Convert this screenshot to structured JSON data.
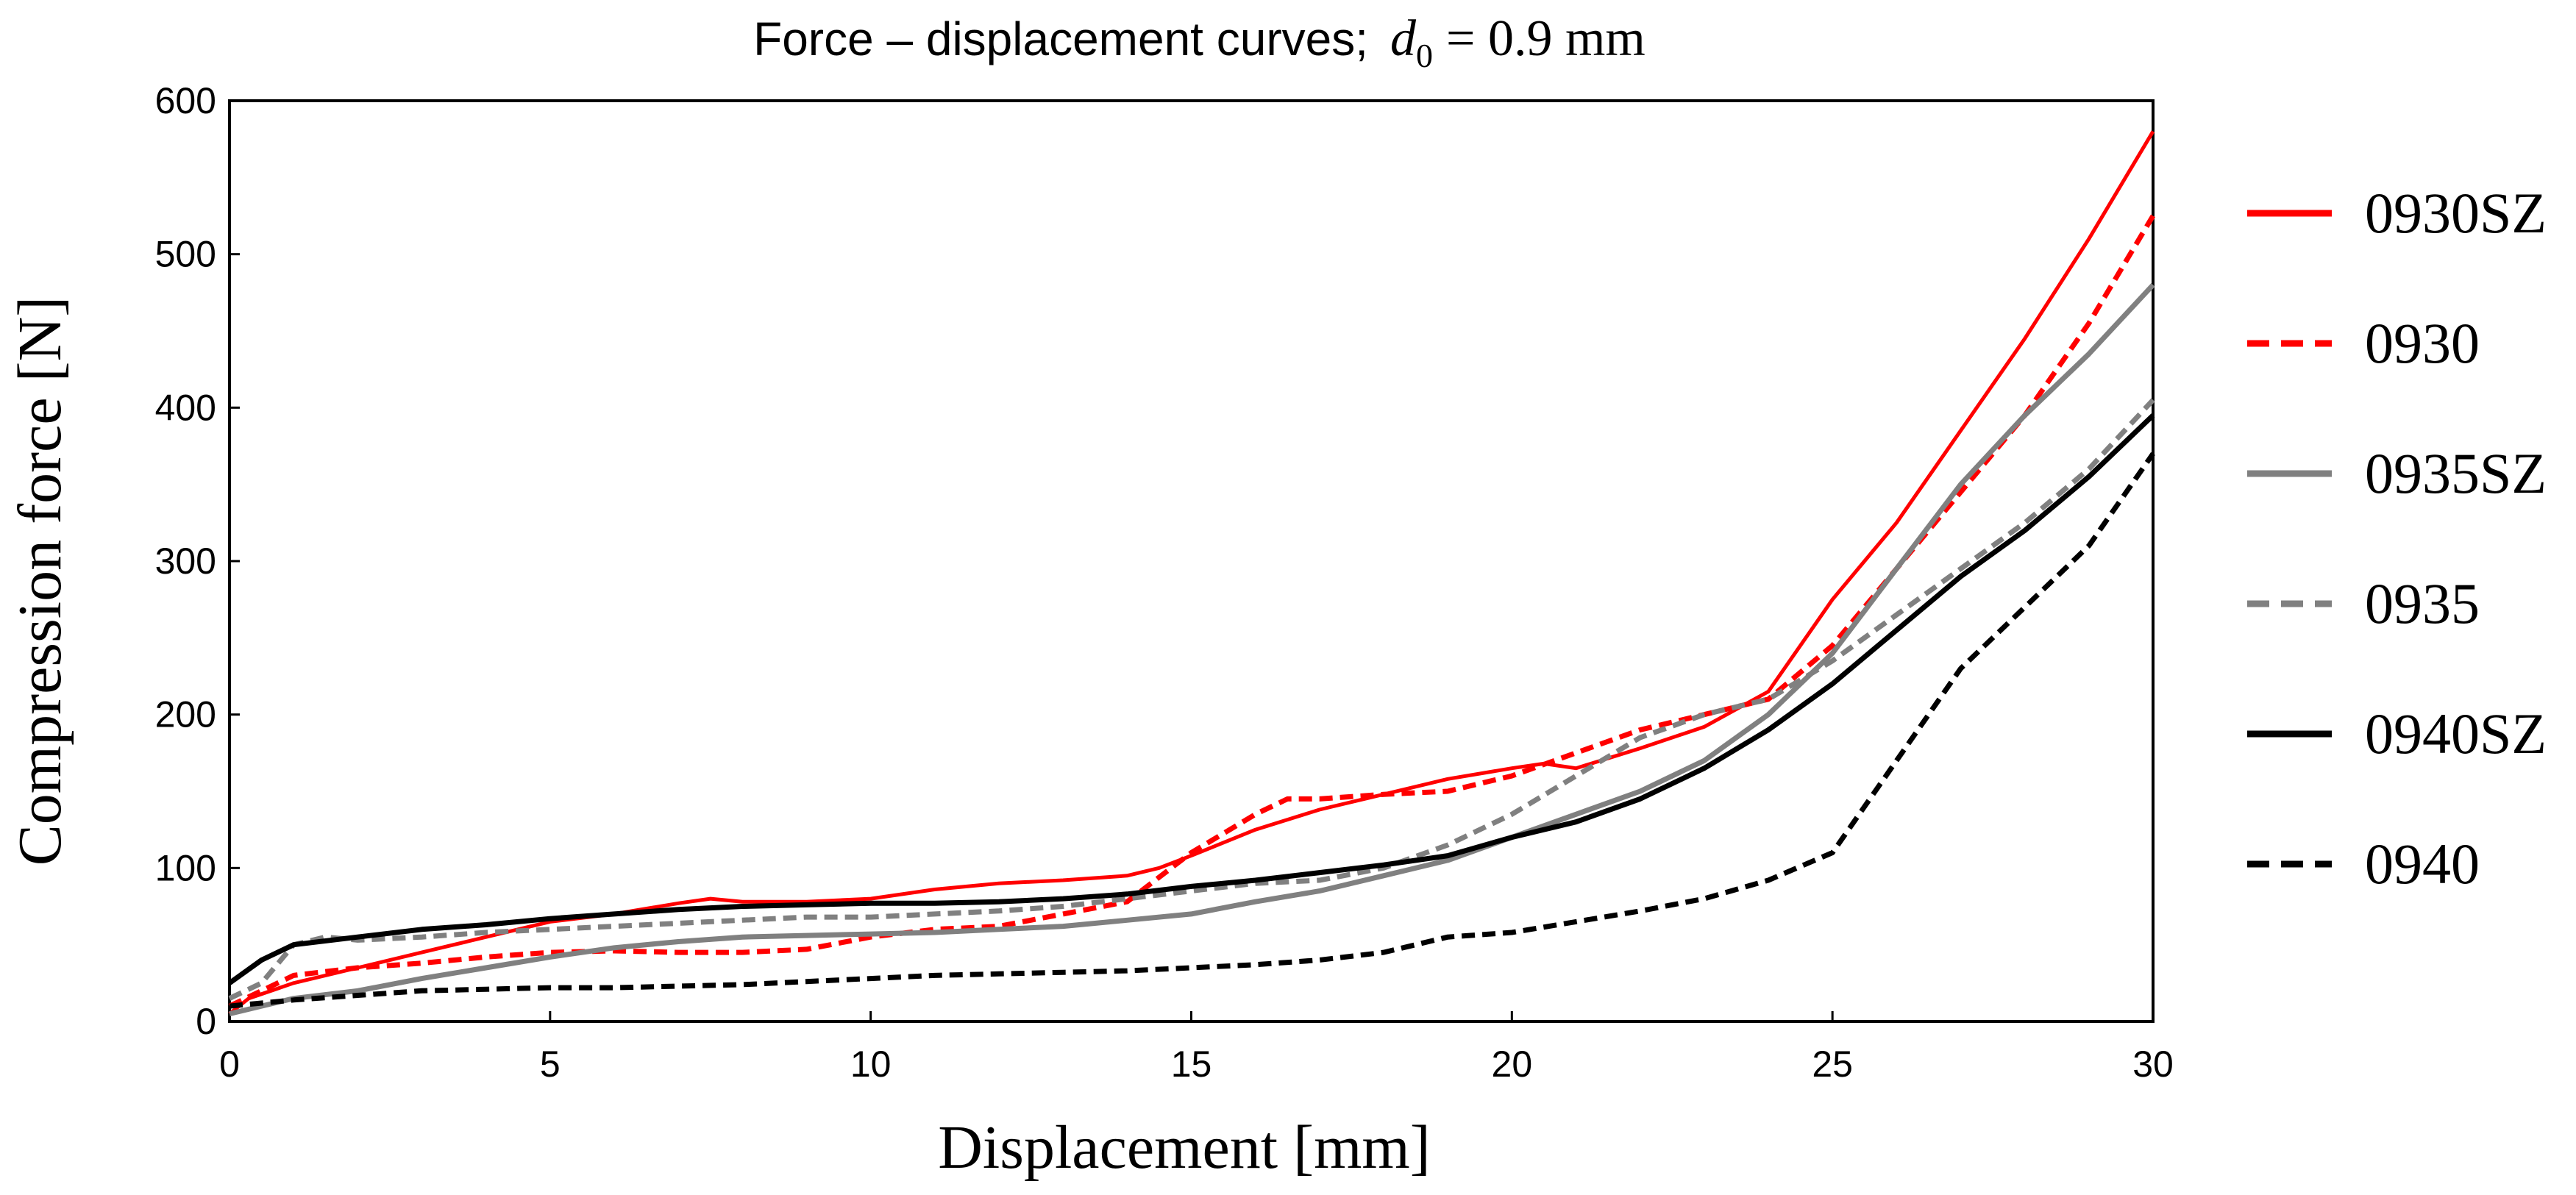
{
  "chart_data": {
    "type": "line",
    "title": "Force – displacement curves;",
    "title_math": {
      "symbol": "d",
      "subscript": "0",
      "relation": "= 0.9 mm"
    },
    "xlabel": "Displacement [mm]",
    "ylabel": "Compression force [N]",
    "xlim": [
      0,
      30
    ],
    "ylim": [
      0,
      600
    ],
    "xticks": [
      0,
      5,
      10,
      15,
      20,
      25,
      30
    ],
    "yticks": [
      0,
      100,
      200,
      300,
      400,
      500,
      600
    ],
    "grid": false,
    "legend_position": "right",
    "series": [
      {
        "name": "0930SZ",
        "color": "#ff0000",
        "dash": "solid",
        "width": 5,
        "points": [
          [
            0,
            5
          ],
          [
            0.3,
            15
          ],
          [
            1,
            25
          ],
          [
            2,
            35
          ],
          [
            3,
            45
          ],
          [
            4,
            55
          ],
          [
            5,
            65
          ],
          [
            6,
            70
          ],
          [
            7,
            77
          ],
          [
            7.5,
            80
          ],
          [
            8,
            78
          ],
          [
            9,
            78
          ],
          [
            10,
            80
          ],
          [
            11,
            86
          ],
          [
            12,
            90
          ],
          [
            13,
            92
          ],
          [
            14,
            95
          ],
          [
            14.5,
            100
          ],
          [
            15,
            108
          ],
          [
            16,
            125
          ],
          [
            17,
            138
          ],
          [
            18,
            148
          ],
          [
            19,
            158
          ],
          [
            20,
            165
          ],
          [
            20.5,
            168
          ],
          [
            21,
            165
          ],
          [
            22,
            178
          ],
          [
            23,
            192
          ],
          [
            24,
            215
          ],
          [
            25,
            275
          ],
          [
            26,
            325
          ],
          [
            27,
            385
          ],
          [
            28,
            445
          ],
          [
            29,
            510
          ],
          [
            30,
            580
          ]
        ]
      },
      {
        "name": "0930",
        "color": "#ff0000",
        "dash": "18,10",
        "width": 7,
        "points": [
          [
            0,
            10
          ],
          [
            0.5,
            20
          ],
          [
            1,
            30
          ],
          [
            2,
            35
          ],
          [
            3,
            38
          ],
          [
            4,
            42
          ],
          [
            5,
            45
          ],
          [
            6,
            46
          ],
          [
            7,
            45
          ],
          [
            8,
            45
          ],
          [
            9,
            47
          ],
          [
            10,
            55
          ],
          [
            11,
            60
          ],
          [
            12,
            62
          ],
          [
            13,
            70
          ],
          [
            14,
            78
          ],
          [
            15,
            110
          ],
          [
            16,
            135
          ],
          [
            16.5,
            145
          ],
          [
            17,
            145
          ],
          [
            18,
            148
          ],
          [
            19,
            150
          ],
          [
            20,
            160
          ],
          [
            21,
            175
          ],
          [
            22,
            190
          ],
          [
            23,
            200
          ],
          [
            24,
            210
          ],
          [
            25,
            245
          ],
          [
            26,
            295
          ],
          [
            27,
            345
          ],
          [
            28,
            395
          ],
          [
            29,
            455
          ],
          [
            30,
            525
          ]
        ]
      },
      {
        "name": "0935SZ",
        "color": "#808080",
        "dash": "solid",
        "width": 7,
        "points": [
          [
            0,
            5
          ],
          [
            0.5,
            10
          ],
          [
            1,
            15
          ],
          [
            2,
            20
          ],
          [
            3,
            28
          ],
          [
            4,
            35
          ],
          [
            5,
            42
          ],
          [
            6,
            48
          ],
          [
            7,
            52
          ],
          [
            8,
            55
          ],
          [
            9,
            56
          ],
          [
            10,
            57
          ],
          [
            11,
            58
          ],
          [
            12,
            60
          ],
          [
            13,
            62
          ],
          [
            14,
            66
          ],
          [
            15,
            70
          ],
          [
            16,
            78
          ],
          [
            17,
            85
          ],
          [
            18,
            95
          ],
          [
            19,
            105
          ],
          [
            20,
            120
          ],
          [
            21,
            135
          ],
          [
            22,
            150
          ],
          [
            23,
            170
          ],
          [
            24,
            200
          ],
          [
            25,
            240
          ],
          [
            26,
            295
          ],
          [
            27,
            350
          ],
          [
            28,
            395
          ],
          [
            29,
            435
          ],
          [
            30,
            480
          ]
        ]
      },
      {
        "name": "0935",
        "color": "#808080",
        "dash": "18,10",
        "width": 7,
        "points": [
          [
            0,
            15
          ],
          [
            0.5,
            25
          ],
          [
            1,
            50
          ],
          [
            1.5,
            55
          ],
          [
            2,
            53
          ],
          [
            3,
            55
          ],
          [
            4,
            58
          ],
          [
            5,
            60
          ],
          [
            6,
            62
          ],
          [
            7,
            64
          ],
          [
            8,
            66
          ],
          [
            9,
            68
          ],
          [
            10,
            68
          ],
          [
            11,
            70
          ],
          [
            12,
            72
          ],
          [
            13,
            75
          ],
          [
            14,
            80
          ],
          [
            15,
            85
          ],
          [
            16,
            90
          ],
          [
            17,
            92
          ],
          [
            18,
            100
          ],
          [
            19,
            115
          ],
          [
            20,
            135
          ],
          [
            21,
            160
          ],
          [
            22,
            185
          ],
          [
            23,
            200
          ],
          [
            24,
            210
          ],
          [
            25,
            235
          ],
          [
            26,
            265
          ],
          [
            27,
            295
          ],
          [
            28,
            325
          ],
          [
            29,
            360
          ],
          [
            30,
            405
          ]
        ]
      },
      {
        "name": "0940SZ",
        "color": "#000000",
        "dash": "solid",
        "width": 7,
        "points": [
          [
            0,
            25
          ],
          [
            0.5,
            40
          ],
          [
            1,
            50
          ],
          [
            2,
            55
          ],
          [
            3,
            60
          ],
          [
            4,
            63
          ],
          [
            5,
            67
          ],
          [
            6,
            70
          ],
          [
            7,
            73
          ],
          [
            8,
            75
          ],
          [
            9,
            76
          ],
          [
            10,
            77
          ],
          [
            11,
            77
          ],
          [
            12,
            78
          ],
          [
            13,
            80
          ],
          [
            14,
            83
          ],
          [
            15,
            88
          ],
          [
            16,
            92
          ],
          [
            17,
            97
          ],
          [
            18,
            102
          ],
          [
            19,
            108
          ],
          [
            20,
            120
          ],
          [
            21,
            130
          ],
          [
            22,
            145
          ],
          [
            23,
            165
          ],
          [
            24,
            190
          ],
          [
            25,
            220
          ],
          [
            26,
            255
          ],
          [
            27,
            290
          ],
          [
            28,
            320
          ],
          [
            29,
            355
          ],
          [
            30,
            395
          ]
        ]
      },
      {
        "name": "0940",
        "color": "#000000",
        "dash": "18,10",
        "width": 7,
        "points": [
          [
            0,
            10
          ],
          [
            0.5,
            12
          ],
          [
            1,
            14
          ],
          [
            2,
            17
          ],
          [
            3,
            20
          ],
          [
            4,
            21
          ],
          [
            5,
            22
          ],
          [
            6,
            22
          ],
          [
            7,
            23
          ],
          [
            8,
            24
          ],
          [
            9,
            26
          ],
          [
            10,
            28
          ],
          [
            11,
            30
          ],
          [
            12,
            31
          ],
          [
            13,
            32
          ],
          [
            14,
            33
          ],
          [
            15,
            35
          ],
          [
            16,
            37
          ],
          [
            17,
            40
          ],
          [
            18,
            45
          ],
          [
            19,
            55
          ],
          [
            20,
            58
          ],
          [
            21,
            65
          ],
          [
            22,
            72
          ],
          [
            23,
            80
          ],
          [
            24,
            92
          ],
          [
            25,
            110
          ],
          [
            26,
            170
          ],
          [
            27,
            230
          ],
          [
            28,
            270
          ],
          [
            29,
            310
          ],
          [
            30,
            370
          ]
        ]
      }
    ]
  }
}
